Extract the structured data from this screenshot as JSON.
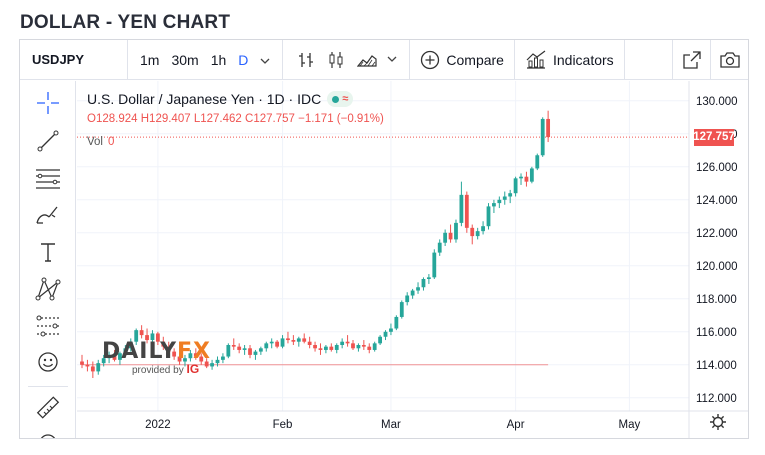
{
  "page": {
    "title": "DOLLAR - YEN CHART"
  },
  "toolbar": {
    "symbol": "USDJPY",
    "intervals": [
      {
        "label": "1m",
        "active": false
      },
      {
        "label": "30m",
        "active": false
      },
      {
        "label": "1h",
        "active": false
      },
      {
        "label": "D",
        "active": true
      }
    ],
    "compare_label": "Compare",
    "indicators_label": "Indicators"
  },
  "legend": {
    "title": "U.S. Dollar / Japanese Yen · 1D · IDC",
    "open_label": "O",
    "open": "128.924",
    "high_label": "H",
    "high": "129.407",
    "low_label": "L",
    "low": "127.462",
    "close_label": "C",
    "close": "127.757",
    "change": "−1.171 (−0.91%)",
    "volume_label": "Vol",
    "volume": "0"
  },
  "watermark": {
    "brand_part1": "DAILY",
    "brand_part2": "FX",
    "provided_by": "provided by",
    "provider": "IG"
  },
  "icons": {
    "left_tools": [
      "crosshair-icon",
      "trend-line-icon",
      "horizontal-lines-icon",
      "brush-icon",
      "text-icon",
      "pattern-icon",
      "projection-icon",
      "emoji-icon",
      "ruler-icon"
    ],
    "toolbar": [
      "chevron-down-icon",
      "bar-chart-icon",
      "candles-icon",
      "area-chart-icon",
      "plus-circle-icon",
      "indicators-icon",
      "popout-icon",
      "camera-icon",
      "settings-gear-icon"
    ]
  },
  "colors": {
    "up": "#26a69a",
    "down": "#ef5350",
    "accent": "#2962ff"
  },
  "chart_data": {
    "type": "candlestick",
    "title": "U.S. Dollar / Japanese Yen · 1D · IDC",
    "ylim": [
      111.2,
      131.2
    ],
    "y_ticks": [
      "112.000",
      "114.000",
      "116.000",
      "118.000",
      "120.000",
      "122.000",
      "124.000",
      "126.000",
      "128.000",
      "130.000"
    ],
    "x_ticks": [
      {
        "label": "2022",
        "index": 14
      },
      {
        "label": "Feb",
        "index": 37
      },
      {
        "label": "Mar",
        "index": 57
      },
      {
        "label": "Apr",
        "index": 80
      },
      {
        "label": "May",
        "index": 101
      }
    ],
    "last_price": "127.757",
    "ohlc": [
      [
        114.2,
        114.6,
        113.8,
        114.0
      ],
      [
        114.0,
        114.3,
        113.6,
        113.9
      ],
      [
        113.9,
        114.2,
        113.2,
        113.6
      ],
      [
        113.6,
        114.3,
        113.4,
        114.1
      ],
      [
        114.1,
        114.6,
        113.9,
        114.4
      ],
      [
        114.4,
        114.8,
        114.1,
        114.6
      ],
      [
        114.6,
        114.9,
        114.2,
        114.3
      ],
      [
        114.3,
        114.8,
        114.0,
        114.7
      ],
      [
        114.7,
        115.2,
        114.5,
        115.0
      ],
      [
        115.0,
        115.6,
        114.8,
        115.4
      ],
      [
        115.4,
        116.2,
        115.2,
        116.1
      ],
      [
        116.1,
        116.4,
        115.6,
        115.8
      ],
      [
        115.8,
        116.2,
        115.3,
        115.5
      ],
      [
        115.5,
        116.1,
        115.2,
        115.9
      ],
      [
        115.9,
        116.0,
        115.2,
        115.4
      ],
      [
        115.4,
        115.7,
        114.9,
        115.1
      ],
      [
        115.1,
        115.4,
        114.6,
        114.8
      ],
      [
        114.8,
        115.0,
        114.3,
        114.5
      ],
      [
        114.5,
        114.7,
        114.0,
        114.2
      ],
      [
        114.2,
        114.6,
        113.9,
        114.4
      ],
      [
        114.4,
        114.9,
        114.2,
        114.7
      ],
      [
        114.7,
        115.0,
        114.3,
        114.5
      ],
      [
        114.5,
        114.7,
        114.0,
        114.2
      ],
      [
        114.2,
        114.4,
        113.8,
        113.9
      ],
      [
        113.9,
        114.3,
        113.7,
        114.1
      ],
      [
        114.1,
        114.5,
        113.9,
        114.3
      ],
      [
        114.3,
        114.7,
        114.1,
        114.5
      ],
      [
        114.5,
        115.3,
        114.4,
        115.2
      ],
      [
        115.2,
        115.6,
        114.9,
        115.1
      ],
      [
        115.1,
        115.3,
        114.7,
        114.9
      ],
      [
        114.9,
        115.2,
        114.6,
        115.0
      ],
      [
        115.0,
        115.2,
        114.4,
        114.6
      ],
      [
        114.6,
        114.9,
        114.3,
        114.8
      ],
      [
        114.8,
        115.1,
        114.6,
        115.0
      ],
      [
        115.0,
        115.4,
        114.8,
        115.3
      ],
      [
        115.3,
        115.6,
        115.0,
        115.4
      ],
      [
        115.4,
        115.5,
        115.0,
        115.1
      ],
      [
        115.1,
        115.8,
        115.0,
        115.6
      ],
      [
        115.6,
        116.0,
        115.3,
        115.5
      ],
      [
        115.5,
        115.8,
        115.2,
        115.4
      ],
      [
        115.4,
        115.7,
        115.1,
        115.6
      ],
      [
        115.6,
        115.9,
        115.3,
        115.4
      ],
      [
        115.4,
        115.7,
        115.0,
        115.2
      ],
      [
        115.2,
        115.4,
        114.8,
        115.0
      ],
      [
        115.0,
        115.3,
        114.6,
        114.9
      ],
      [
        114.9,
        115.2,
        114.7,
        115.1
      ],
      [
        115.1,
        115.3,
        114.8,
        114.9
      ],
      [
        114.9,
        115.3,
        114.7,
        115.2
      ],
      [
        115.2,
        115.6,
        115.0,
        115.4
      ],
      [
        115.4,
        115.8,
        115.1,
        115.3
      ],
      [
        115.3,
        115.5,
        114.9,
        115.0
      ],
      [
        115.0,
        115.3,
        114.8,
        115.2
      ],
      [
        115.2,
        115.5,
        114.9,
        115.1
      ],
      [
        115.1,
        115.3,
        114.7,
        114.9
      ],
      [
        114.9,
        115.4,
        114.8,
        115.3
      ],
      [
        115.3,
        115.8,
        115.2,
        115.7
      ],
      [
        115.7,
        116.1,
        115.5,
        116.0
      ],
      [
        116.0,
        116.5,
        115.8,
        116.2
      ],
      [
        116.2,
        117.0,
        116.1,
        116.9
      ],
      [
        116.9,
        117.9,
        116.8,
        117.8
      ],
      [
        117.8,
        118.4,
        117.6,
        118.2
      ],
      [
        118.2,
        118.6,
        118.0,
        118.5
      ],
      [
        118.5,
        119.0,
        118.3,
        118.7
      ],
      [
        118.7,
        119.3,
        118.5,
        119.2
      ],
      [
        119.2,
        119.5,
        118.9,
        119.3
      ],
      [
        119.3,
        121.0,
        119.2,
        120.8
      ],
      [
        120.8,
        121.6,
        120.6,
        121.4
      ],
      [
        121.4,
        122.2,
        121.2,
        122.0
      ],
      [
        122.0,
        122.5,
        121.4,
        121.6
      ],
      [
        121.6,
        122.8,
        121.4,
        122.6
      ],
      [
        122.6,
        125.1,
        122.4,
        124.3
      ],
      [
        124.3,
        124.5,
        122.0,
        122.3
      ],
      [
        122.3,
        122.5,
        121.3,
        121.8
      ],
      [
        121.8,
        122.3,
        121.6,
        122.1
      ],
      [
        122.1,
        122.7,
        121.9,
        122.4
      ],
      [
        122.4,
        123.8,
        122.2,
        123.6
      ],
      [
        123.6,
        124.0,
        123.2,
        123.8
      ],
      [
        123.8,
        124.2,
        123.5,
        124.0
      ],
      [
        124.0,
        124.5,
        123.7,
        124.2
      ],
      [
        124.2,
        124.6,
        123.8,
        124.4
      ],
      [
        124.4,
        125.4,
        124.2,
        125.3
      ],
      [
        125.3,
        125.6,
        124.9,
        125.4
      ],
      [
        125.4,
        125.7,
        124.8,
        125.1
      ],
      [
        125.1,
        126.0,
        125.0,
        125.9
      ],
      [
        125.9,
        126.8,
        125.8,
        126.7
      ],
      [
        126.7,
        129.0,
        126.6,
        128.9
      ],
      [
        128.9,
        129.4,
        127.5,
        127.8
      ]
    ]
  }
}
